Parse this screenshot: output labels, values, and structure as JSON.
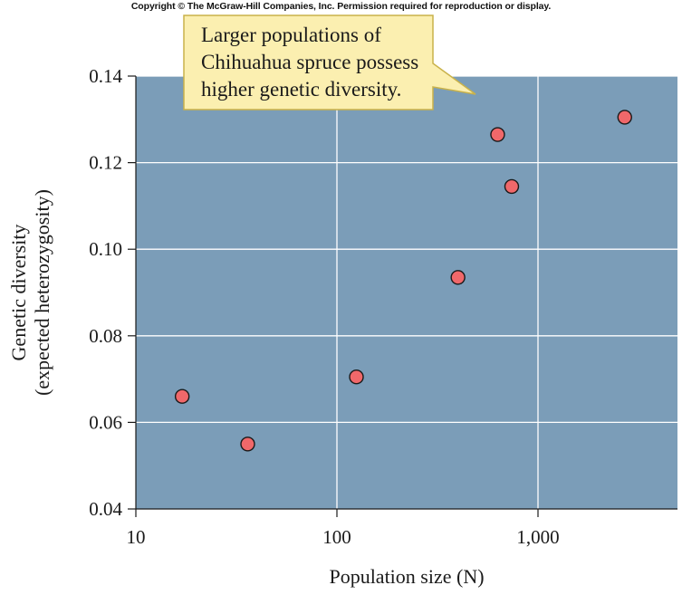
{
  "copyright": "Copyright © The McGraw-Hill Companies, Inc. Permission required for reproduction or display.",
  "colors": {
    "plot_background": "#7b9db8",
    "grid": "#ffffff",
    "marker_fill": "#f0686a",
    "marker_stroke": "#1a1a1a",
    "callout_fill": "#fbefb0",
    "callout_stroke": "#c9b24a"
  },
  "annotation": {
    "lines": [
      "Larger populations of",
      "Chihuahua spruce possess",
      "higher genetic diversity."
    ]
  },
  "chart_data": {
    "type": "scatter",
    "title": "",
    "xlabel": "Population size (N)",
    "ylabel_lines": [
      "Genetic diversity",
      "(expected heterozygosity)"
    ],
    "x_scale": "log",
    "xlim": [
      10,
      5000
    ],
    "ylim": [
      0.04,
      0.14
    ],
    "x_ticks": [
      10,
      100,
      1000
    ],
    "x_tick_labels": [
      "10",
      "100",
      "1,000"
    ],
    "y_ticks": [
      0.04,
      0.06,
      0.08,
      0.1,
      0.12,
      0.14
    ],
    "y_tick_labels": [
      "0.04",
      "0.06",
      "0.08",
      "0.10",
      "0.12",
      "0.14"
    ],
    "grid": true,
    "points": [
      {
        "x": 17,
        "y": 0.066
      },
      {
        "x": 36,
        "y": 0.055
      },
      {
        "x": 125,
        "y": 0.0705
      },
      {
        "x": 400,
        "y": 0.0935
      },
      {
        "x": 630,
        "y": 0.1265
      },
      {
        "x": 740,
        "y": 0.1145
      },
      {
        "x": 2700,
        "y": 0.1305
      }
    ]
  }
}
